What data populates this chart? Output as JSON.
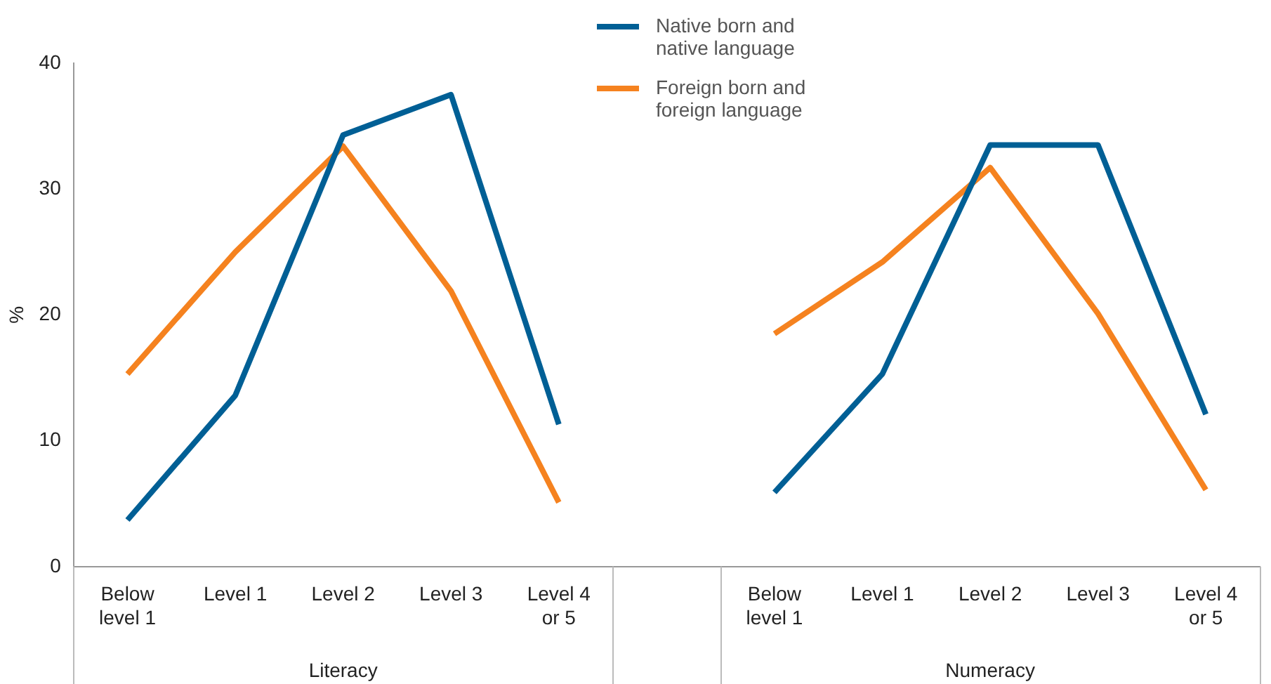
{
  "chart_data": {
    "type": "line",
    "ylabel": "%",
    "categories": [
      "Below level 1",
      "Level 1",
      "Level 2",
      "Level 3",
      "Level 4 or 5",
      null,
      "Below level 1",
      "Level 1",
      "Level 2",
      "Level 3",
      "Level 4 or 5"
    ],
    "series": [
      {
        "name": "Native born and native language",
        "color": "#005f95",
        "values": [
          3.7,
          13.6,
          34.3,
          37.5,
          11.3,
          null,
          5.9,
          15.3,
          33.5,
          33.5,
          12.1
        ]
      },
      {
        "name": "Foreign born and foreign language",
        "color": "#f5821f",
        "values": [
          15.3,
          25.0,
          33.4,
          21.9,
          5.1,
          null,
          18.5,
          24.2,
          31.7,
          20.1,
          6.1
        ]
      }
    ],
    "ylim": [
      0,
      40
    ],
    "yticks": [
      0,
      10,
      20,
      30,
      40
    ],
    "grid": false,
    "legend": "top",
    "marker": "none",
    "line_style": "solid",
    "annotations": [
      "Literacy",
      "Numeracy"
    ]
  }
}
